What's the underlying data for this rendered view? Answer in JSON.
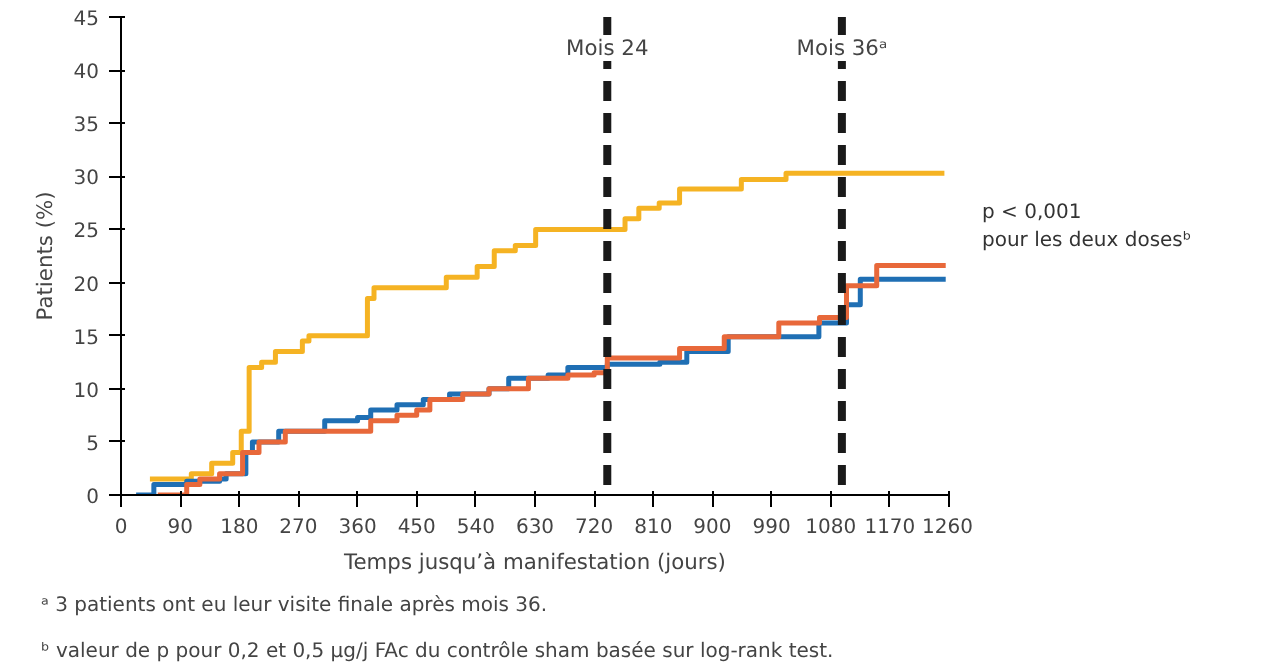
{
  "chart_data": {
    "type": "step",
    "xlabel": "Temps jusqu’à manifestation (jours)",
    "ylabel": "Patients (%)",
    "xlim": [
      0,
      1260
    ],
    "xticks": [
      0,
      90,
      180,
      270,
      360,
      450,
      540,
      630,
      720,
      810,
      900,
      990,
      1080,
      1170,
      1260
    ],
    "ylim": [
      0,
      45
    ],
    "yticks": [
      0,
      5,
      10,
      15,
      20,
      25,
      30,
      35,
      40,
      45
    ],
    "grid": false,
    "line_style": "solid",
    "series": [
      {
        "color": "#f5b323",
        "x": [
          44,
          107,
          138,
          170,
          183,
          195,
          214,
          235,
          276,
          286,
          375,
          385,
          495,
          542,
          568,
          600,
          631,
          767,
          788,
          819,
          850,
          944,
          1012,
          1253
        ],
        "values": [
          1.5,
          2,
          3,
          4,
          6,
          12,
          12.5,
          13.5,
          14.5,
          15,
          18.5,
          19.5,
          20.5,
          21.5,
          23,
          23.5,
          25,
          26,
          27,
          27.5,
          28.8,
          29.7,
          30.3,
          30.3
        ]
      },
      {
        "color": "#1f6fb4",
        "x": [
          23,
          50,
          100,
          150,
          160,
          190,
          200,
          240,
          310,
          360,
          380,
          420,
          460,
          500,
          560,
          590,
          650,
          680,
          740,
          820,
          861,
          924,
          1062,
          1104,
          1125,
          1255
        ],
        "values": [
          0,
          1,
          1.3,
          1.5,
          2,
          4,
          5,
          6,
          7,
          7.3,
          8,
          8.5,
          9,
          9.5,
          10,
          11,
          11.3,
          12,
          12.3,
          12.5,
          13.5,
          14.9,
          16.2,
          17.9,
          20.3,
          20.3
        ]
      },
      {
        "color": "#e8683a",
        "x": [
          56,
          100,
          120,
          150,
          185,
          210,
          250,
          380,
          420,
          450,
          470,
          520,
          560,
          620,
          680,
          720,
          740,
          850,
          918,
          1001,
          1063,
          1104,
          1150,
          1255
        ],
        "values": [
          0,
          1,
          1.5,
          2,
          4,
          5,
          6,
          7,
          7.5,
          8,
          9,
          9.5,
          10,
          11,
          11.3,
          11.5,
          12.9,
          13.8,
          14.9,
          16.2,
          16.7,
          19.7,
          21.6,
          21.6
        ]
      }
    ],
    "ref_lines": [
      {
        "axis": "x",
        "value": 740,
        "label": "Mois 24",
        "color": "#1a1a1a",
        "line_style": "dashed"
      },
      {
        "axis": "x",
        "value": 1097,
        "label": "Mois 36ᵃ",
        "color": "#1a1a1a",
        "line_style": "dashed"
      }
    ],
    "annotations": [
      "p < 0,001\npour les deux dosesᵇ",
      "ᵃ 3 patients ont eu leur visite finale après mois 36.",
      "ᵇ valeur de p pour 0,2 et 0,5 µg/j FAc du contrôle sham basée sur log-rank test."
    ]
  }
}
